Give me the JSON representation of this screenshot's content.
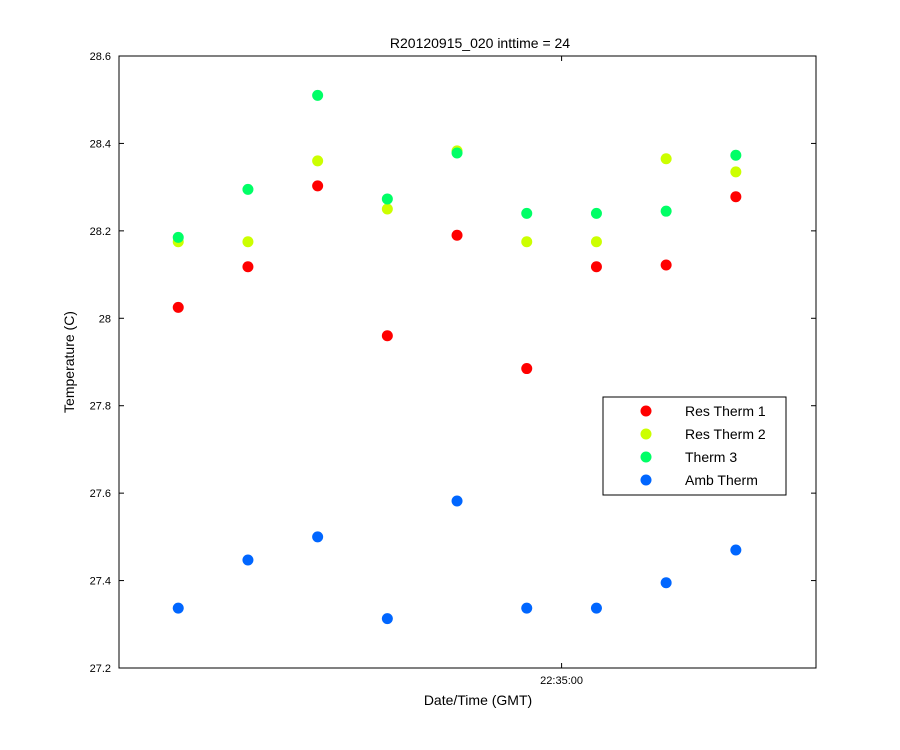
{
  "chart_data": {
    "type": "scatter",
    "title": "R20120915_020 inttime = 24",
    "xlabel": "Date/Time (GMT)",
    "ylabel": "Temperature (C)",
    "ylim": [
      27.2,
      28.6
    ],
    "yticks": [
      27.2,
      27.4,
      27.6,
      27.8,
      28,
      28.2,
      28.4,
      28.6
    ],
    "ytick_labels": [
      "27.2",
      "27.4",
      "27.6",
      "27.8",
      "28",
      "28.2",
      "28.4",
      "28.6"
    ],
    "xlim": [
      0,
      10
    ],
    "xticks": [
      {
        "x": 6.35,
        "label": "22:35:00"
      }
    ],
    "x": [
      0.85,
      1.85,
      2.85,
      3.85,
      4.85,
      5.85,
      6.85,
      7.85,
      8.85
    ],
    "grid": false,
    "legend_position": "right",
    "series": [
      {
        "name": "Res Therm 1",
        "color": "#ff0000",
        "values": [
          28.025,
          28.118,
          28.303,
          27.96,
          28.19,
          27.885,
          28.118,
          28.122,
          28.278
        ]
      },
      {
        "name": "Res Therm 2",
        "color": "#ccff00",
        "values": [
          28.175,
          28.175,
          28.36,
          28.25,
          28.383,
          28.175,
          28.175,
          28.365,
          28.335
        ]
      },
      {
        "name": "Therm 3",
        "color": "#00ff66",
        "values": [
          28.185,
          28.295,
          28.51,
          28.273,
          28.378,
          28.24,
          28.24,
          28.245,
          28.373
        ]
      },
      {
        "name": "Amb Therm",
        "color": "#0066ff",
        "values": [
          27.337,
          27.447,
          27.5,
          27.313,
          27.582,
          27.337,
          27.337,
          27.395,
          27.47
        ]
      }
    ]
  }
}
